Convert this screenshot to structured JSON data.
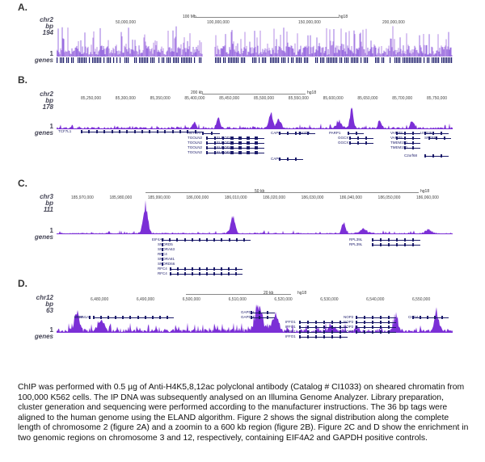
{
  "panels": [
    {
      "id": "A",
      "label": "A.",
      "chrom": "chr2",
      "unit": "bp",
      "maxval": "194",
      "minval": "1",
      "genes_label": "genes",
      "scale_text": "100 Mb",
      "build": "hg18",
      "ticks": [
        "50,000,000",
        "100,000,000",
        "150,000,000",
        "200,000,000"
      ]
    },
    {
      "id": "B",
      "label": "B.",
      "chrom": "chr2",
      "unit": "bp",
      "maxval": "178",
      "minval": "1",
      "genes_label": "genes",
      "scale_text": "200 kb",
      "build": "hg18",
      "ticks": [
        "85,250,000",
        "85,300,000",
        "85,350,000",
        "85,400,000",
        "85,450,000",
        "85,500,000",
        "85,550,000",
        "85,600,000",
        "85,650,000",
        "85,700,000",
        "85,750,000"
      ],
      "genes": [
        "TCF7L1",
        "RETSAT",
        "TGOLN2",
        "TGOLN2",
        "TGOLN2",
        "TGOLN2",
        "ELMOD3",
        "ELMOD3",
        "ELMOD3",
        "ELMOD3",
        "CAPG",
        "CAPG",
        "SH2D6",
        "PARP1",
        "GGCX",
        "GGCX",
        "VAMP8",
        "VAMP5",
        "TMEM150",
        "TMEM150",
        "USP39",
        "C2orf68",
        "SFTPB"
      ]
    },
    {
      "id": "C",
      "label": "C.",
      "chrom": "chr3",
      "unit": "bp",
      "maxval": "111",
      "minval": "1",
      "genes_label": "genes",
      "scale_text": "50 kb",
      "build": "hg18",
      "ticks": [
        "185,970,000",
        "185,980,000",
        "185,990,000",
        "186,000,000",
        "186,010,000",
        "186,020,000",
        "186,030,000",
        "186,040,000",
        "186,050,000",
        "186,060,000"
      ],
      "genes": [
        "EIF4A2",
        "SNORD5",
        "SNORA63",
        "RFC4",
        "SNORA81",
        "SNORD66",
        "RFC4",
        "RFC4",
        "RPL39L",
        "RPL39L"
      ]
    },
    {
      "id": "D",
      "label": "D.",
      "chrom": "chr12",
      "unit": "bp",
      "maxval": "63",
      "minval": "1",
      "genes_label": "genes",
      "scale_text": "20 kb",
      "build": "hg18",
      "ticks": [
        "6,480,000",
        "6,490,000",
        "6,500,000",
        "6,510,000",
        "6,520,000",
        "6,530,000",
        "6,540,000",
        "6,550,000"
      ],
      "genes": [
        "SCNN1A",
        "LTBR",
        "GAPDH",
        "GAPDH",
        "IFFO1",
        "IFFO1",
        "IFFO1",
        "IFFO1",
        "NOP2",
        "NOP2",
        "NOP2",
        "NOP2",
        "CHD4"
      ]
    }
  ],
  "caption": "ChIP was performed with 0.5 µg of Anti-H4K5,8,12ac polyclonal antibody (Catalog # CI1033) on sheared chromatin from 100,000 K562 cells. The IP DNA was subsequently analysed on an Illumina Genome Analyzer. Library preparation, cluster generation and sequencing were performed according to the manufacturer instructions. The 36 bp tags were aligned to the human genome using the ELAND algorithm. Figure 2 shows the signal distribution along the complete length of chromosome 2 (figure 2A) and a zoomin to a 600 kb region (figure 2B). Figure 2C and D show the enrichment in two genomic regions on chromosome 3 and 12, respectively, containing EIF4A2 and GAPDH positive controls.",
  "colors": {
    "signal": "#7b2fd6",
    "signal_light": "#b48ee6",
    "genes": "#1b1b6a",
    "background": "#ffffff"
  }
}
